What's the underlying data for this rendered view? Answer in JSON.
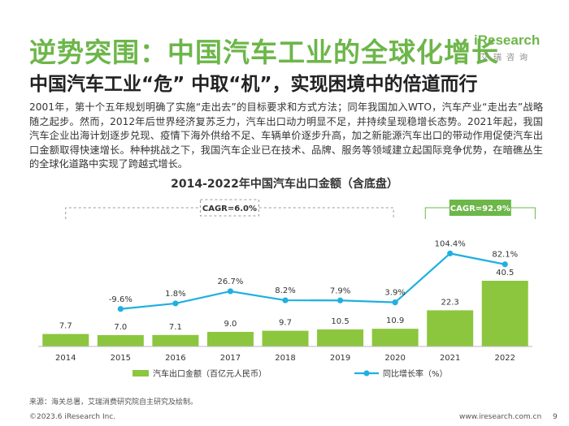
{
  "page": {
    "title": "逆势突围：中国汽车工业的全球化增长",
    "subtitle": "中国汽车工业“危” 中取“机”，实现困境中的倍道而行",
    "body": "2001年，第十个五年规划明确了实施“走出去”的目标要求和方式方法；同年我国加入WTO，汽车产业“走出去”战略随之起步。然而，2012年后世界经济复苏乏力，汽车出口动力明显不足，并持续呈现稳增长态势。2021年起，我国汽车企业出海计划逐步兑现、疫情下海外供给不足、车辆单价逐步升高，加之新能源汽车出口的带动作用促使汽车出口金额取得快速增长。种种挑战之下，我国汽车企业已在技术、品牌、服务等领域建立起国际竞争优势，在暗礁丛生的全球化道路中实现了跨越式增长。",
    "source": "来源：海关总署，艾瑞消费研究院自主研究及绘制。",
    "copyright": "©2023.6 iResearch Inc.",
    "site": "www.iresearch.com.cn",
    "page_number": "9"
  },
  "logo": {
    "main": "iResearch",
    "sub": "艾瑞咨询"
  },
  "colors": {
    "accent": "#6db64a",
    "bar": "#8cc63f",
    "line": "#1fb0e0"
  },
  "chart_data": {
    "type": "bar",
    "title": "2014-2022年中国汽车出口金额（含底盘）",
    "categories": [
      "2014",
      "2015",
      "2016",
      "2017",
      "2018",
      "2019",
      "2020",
      "2021",
      "2022"
    ],
    "series": [
      {
        "name": "汽车出口金额（百亿元人民币）",
        "type": "bar",
        "values": [
          7.7,
          7.0,
          7.1,
          9.0,
          9.7,
          10.5,
          10.9,
          22.3,
          40.5
        ],
        "labels": [
          "7.7",
          "7.0",
          "7.1",
          "9.0",
          "9.7",
          "10.5",
          "10.9",
          "22.3",
          "40.5"
        ]
      },
      {
        "name": "同比增长率（%）",
        "type": "line",
        "values": [
          null,
          -9.6,
          1.8,
          26.7,
          8.2,
          7.9,
          3.9,
          104.4,
          82.1
        ],
        "labels": [
          "",
          "-9.6%",
          "1.8%",
          "26.7%",
          "8.2%",
          "7.9%",
          "3.9%",
          "104.4%",
          "82.1%"
        ]
      }
    ],
    "annotations": [
      {
        "text": "CAGR=6.0%",
        "from": "2014",
        "to": "2020"
      },
      {
        "text": "CAGR=92.9%",
        "from": "2021",
        "to": "2022"
      }
    ],
    "legend": {
      "position": "bottom"
    }
  }
}
